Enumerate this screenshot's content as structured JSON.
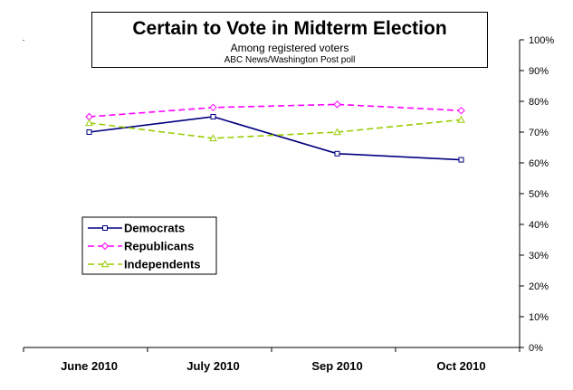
{
  "chart_data": {
    "type": "line",
    "title": "Certain to Vote in Midterm Election",
    "subtitle": "Among registered voters",
    "source": "ABC News/Washington Post poll",
    "categories": [
      "June 2010",
      "July 2010",
      "Sep 2010",
      "Oct 2010"
    ],
    "ylim": [
      0,
      100
    ],
    "yticks": [
      "0%",
      "10%",
      "20%",
      "30%",
      "40%",
      "50%",
      "60%",
      "70%",
      "80%",
      "90%",
      "100%"
    ],
    "y_axis_side": "right",
    "grid": false,
    "legend_placement": "lower-left",
    "series": [
      {
        "name": "Democrats",
        "values": [
          70,
          75,
          63,
          61
        ],
        "color": "#000080",
        "marker": "square",
        "dash": "solid"
      },
      {
        "name": "Republicans",
        "values": [
          75,
          78,
          79,
          77
        ],
        "color": "#ff00ff",
        "marker": "diamond",
        "dash": "dashed"
      },
      {
        "name": "Independents",
        "values": [
          73,
          68,
          70,
          74
        ],
        "color": "#99cc00",
        "marker": "triangle",
        "dash": "dashed"
      }
    ]
  }
}
